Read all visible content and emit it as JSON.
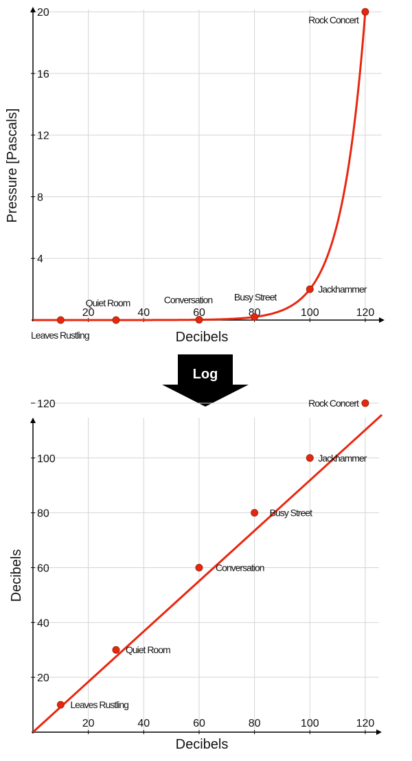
{
  "chart_data": [
    {
      "type": "line",
      "title": "",
      "xlabel": "Decibels",
      "ylabel": "Pressure [Pascals]",
      "xlim": [
        0,
        122
      ],
      "ylim": [
        0,
        20.5
      ],
      "x_ticks": [
        20,
        40,
        60,
        80,
        100,
        120
      ],
      "y_ticks": [
        4,
        8,
        12,
        16,
        20
      ],
      "x_tick_labels": [
        "20",
        "40",
        "60",
        "80",
        "100",
        "120"
      ],
      "y_tick_labels": [
        "4",
        "8",
        "12",
        "16",
        "20"
      ],
      "grid": true,
      "curve": "pressure = 20 * 10^((dB - 120) / 20)",
      "series": [
        {
          "points": [
            {
              "label": "Leaves Rustling",
              "x": 10,
              "y": 0.0001
            },
            {
              "label": "Quiet Room",
              "x": 30,
              "y": 0.0006
            },
            {
              "label": "Conversation",
              "x": 60,
              "y": 0.02
            },
            {
              "label": "Busy Street",
              "x": 80,
              "y": 0.2
            },
            {
              "label": "Jackhammer",
              "x": 100,
              "y": 2
            },
            {
              "label": "Rock Concert",
              "x": 120,
              "y": 20
            }
          ]
        }
      ],
      "color": "#e8260f"
    },
    {
      "type": "line",
      "title": "",
      "xlabel": "Decibels",
      "ylabel": "Decibels",
      "xlim": [
        0,
        122
      ],
      "ylim": [
        0,
        124
      ],
      "x_ticks": [
        20,
        40,
        60,
        80,
        100,
        120
      ],
      "y_ticks": [
        20,
        40,
        60,
        80,
        100,
        120
      ],
      "x_tick_labels": [
        "20",
        "40",
        "60",
        "80",
        "100",
        "120"
      ],
      "y_tick_labels": [
        "20",
        "40",
        "60",
        "80",
        "100",
        "120"
      ],
      "grid": true,
      "curve": "y = x",
      "series": [
        {
          "points": [
            {
              "label": "Leaves Rustling",
              "x": 10,
              "y": 10
            },
            {
              "label": "Quiet Room",
              "x": 30,
              "y": 30
            },
            {
              "label": "Conversation",
              "x": 60,
              "y": 60
            },
            {
              "label": "Busy Street",
              "x": 80,
              "y": 80
            },
            {
              "label": "Jackhammer",
              "x": 100,
              "y": 100
            },
            {
              "label": "Rock Concert",
              "x": 120,
              "y": 120
            }
          ]
        }
      ],
      "color": "#e8260f"
    }
  ],
  "arrow": {
    "label": "Log"
  }
}
